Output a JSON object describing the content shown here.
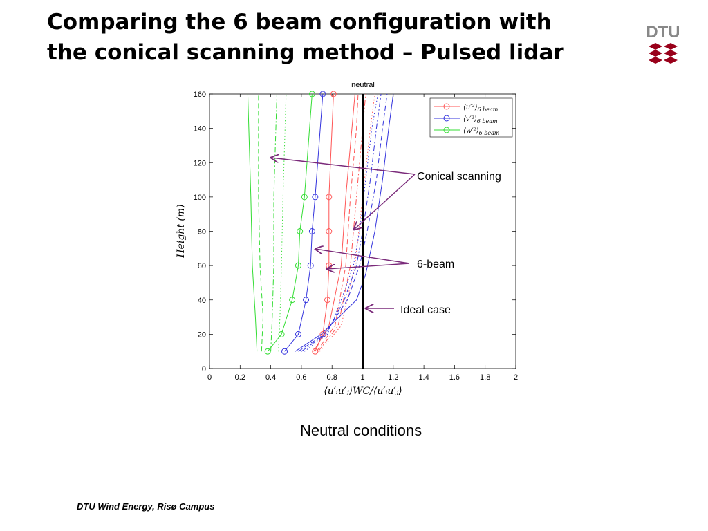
{
  "slide": {
    "title_line1": "Comparing the 6 beam configuration with",
    "title_line2": "the conical scanning method – Pulsed lidar",
    "logo_text": "DTU",
    "caption": "Neutral conditions",
    "footer": "DTU Wind Energy, Risø Campus",
    "colors": {
      "logo": "#99001A",
      "annotation_arrow": "#7a2a7a"
    }
  },
  "annotations": {
    "conical": "Conical scanning",
    "sixbeam": "6-beam",
    "ideal": "Ideal case"
  },
  "chart_data": {
    "type": "line",
    "title": "neutral",
    "xlabel": "⟨u′ᵢu′ⱼ⟩WC/⟨u′ᵢu′ⱼ⟩",
    "ylabel": "Height (m)",
    "xlim": [
      0,
      2
    ],
    "ylim": [
      0,
      160
    ],
    "xticks": [
      0,
      0.2,
      0.4,
      0.6,
      0.8,
      1,
      1.2,
      1.4,
      1.6,
      1.8,
      2
    ],
    "yticks": [
      0,
      20,
      40,
      60,
      80,
      100,
      120,
      140,
      160
    ],
    "grid": false,
    "legend_position": "top-right",
    "legend": [
      {
        "main": "⟨u′²⟩",
        "sub": "6 beam",
        "color": "#ff5555"
      },
      {
        "main": "⟨v′²⟩",
        "sub": "6 beam",
        "color": "#3333dd"
      },
      {
        "main": "⟨w′²⟩",
        "sub": "6 beam",
        "color": "#33dd33"
      }
    ],
    "series": [
      {
        "name": "⟨u′²⟩6 beam",
        "color": "#ff5555",
        "style": "solid",
        "marker": "circle",
        "x": [
          0.69,
          0.74,
          0.77,
          0.78,
          0.78,
          0.78,
          0.81
        ],
        "y": [
          10,
          20,
          40,
          60,
          80,
          100,
          160
        ]
      },
      {
        "name": "⟨v′²⟩6 beam",
        "color": "#3333dd",
        "style": "solid",
        "marker": "circle",
        "x": [
          0.49,
          0.58,
          0.63,
          0.66,
          0.67,
          0.69,
          0.74
        ],
        "y": [
          10,
          20,
          40,
          60,
          80,
          100,
          160
        ]
      },
      {
        "name": "⟨w′²⟩6 beam",
        "color": "#33dd33",
        "style": "solid",
        "marker": "circle",
        "x": [
          0.38,
          0.47,
          0.54,
          0.58,
          0.59,
          0.62,
          0.67
        ],
        "y": [
          10,
          20,
          40,
          60,
          80,
          100,
          160
        ]
      },
      {
        "color": "#33dd33",
        "style": "solid",
        "x": [
          0.31,
          0.3,
          0.28,
          0.27,
          0.25
        ],
        "y": [
          10,
          30,
          60,
          100,
          160
        ]
      },
      {
        "color": "#33dd33",
        "style": "dashed",
        "x": [
          0.34,
          0.35,
          0.33,
          0.32,
          0.32
        ],
        "y": [
          10,
          30,
          60,
          100,
          160
        ]
      },
      {
        "color": "#33dd33",
        "style": "dashdot",
        "x": [
          0.4,
          0.41,
          0.42,
          0.42,
          0.44
        ],
        "y": [
          10,
          30,
          60,
          100,
          160
        ]
      },
      {
        "color": "#33dd33",
        "style": "dotted",
        "x": [
          0.45,
          0.46,
          0.47,
          0.48,
          0.5
        ],
        "y": [
          10,
          30,
          60,
          100,
          160
        ]
      },
      {
        "color": "#ff5555",
        "style": "solid",
        "x": [
          0.68,
          0.78,
          0.86,
          0.89,
          0.93,
          0.95
        ],
        "y": [
          10,
          25,
          60,
          100,
          140,
          160
        ]
      },
      {
        "color": "#ff5555",
        "style": "dashed",
        "x": [
          0.7,
          0.82,
          0.89,
          0.92,
          0.96,
          0.97
        ],
        "y": [
          10,
          25,
          60,
          100,
          140,
          160
        ]
      },
      {
        "color": "#ff5555",
        "style": "dashdot",
        "x": [
          0.71,
          0.84,
          0.92,
          0.96,
          1.0,
          1.02
        ],
        "y": [
          10,
          25,
          60,
          100,
          140,
          160
        ]
      },
      {
        "color": "#ff5555",
        "style": "dotted",
        "x": [
          0.72,
          0.86,
          0.95,
          1.0,
          1.05,
          1.08
        ],
        "y": [
          10,
          25,
          60,
          100,
          140,
          160
        ]
      },
      {
        "color": "#3333dd",
        "style": "solid",
        "x": [
          0.56,
          0.73,
          0.96,
          1.02,
          1.08,
          1.13,
          1.17,
          1.2
        ],
        "y": [
          10,
          20,
          40,
          55,
          80,
          110,
          140,
          160
        ]
      },
      {
        "color": "#3333dd",
        "style": "dashed",
        "x": [
          0.58,
          0.75,
          0.9,
          0.98,
          1.03,
          1.09,
          1.13,
          1.16
        ],
        "y": [
          10,
          20,
          40,
          60,
          80,
          110,
          140,
          160
        ]
      },
      {
        "color": "#3333dd",
        "style": "dashdot",
        "x": [
          0.6,
          0.76,
          0.88,
          0.96,
          1.0,
          1.05,
          1.09,
          1.12
        ],
        "y": [
          10,
          20,
          40,
          60,
          80,
          110,
          140,
          160
        ]
      },
      {
        "color": "#3333dd",
        "style": "dotted",
        "x": [
          0.62,
          0.77,
          0.86,
          0.94,
          0.98,
          1.02,
          1.06,
          1.1
        ],
        "y": [
          10,
          20,
          40,
          60,
          80,
          110,
          140,
          160
        ]
      },
      {
        "color": "#000000",
        "style": "thick",
        "x": [
          1.0,
          1.0
        ],
        "y": [
          0,
          160
        ]
      }
    ]
  }
}
